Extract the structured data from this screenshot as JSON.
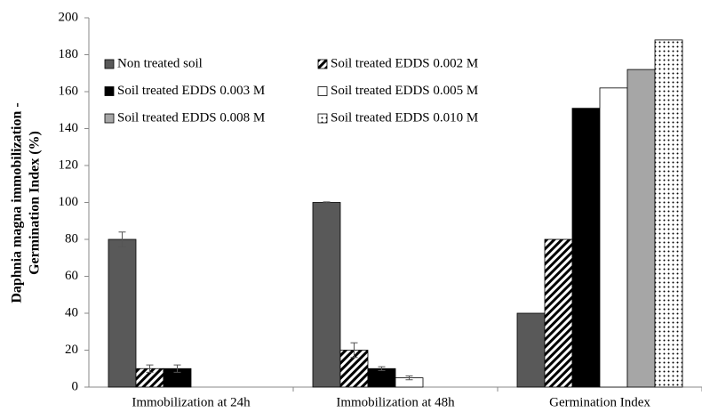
{
  "chart_data": {
    "type": "bar",
    "ylabel": [
      "Daphnia magna immobilization -",
      "Germination Index (%)"
    ],
    "categories": [
      "Immobilization at 24h",
      "Immobilization at 48h",
      "Germination Index"
    ],
    "ylim": [
      0,
      200
    ],
    "yticks": [
      0,
      20,
      40,
      60,
      80,
      100,
      120,
      140,
      160,
      180,
      200
    ],
    "legend": "upper left",
    "series": [
      {
        "name": "Non treated soil",
        "color": "#595959",
        "values": [
          80,
          100,
          40
        ],
        "errors": [
          4,
          0.3,
          null
        ]
      },
      {
        "name": "Soil treated EDDS 0.002 M",
        "color": "#4cc44c",
        "pattern": "stripes",
        "values": [
          10,
          20,
          80
        ],
        "errors": [
          2,
          4,
          null
        ]
      },
      {
        "name": "Soil treated EDDS 0.003 M",
        "color": "#000000",
        "values": [
          10,
          10,
          151
        ],
        "errors": [
          2,
          1,
          null
        ]
      },
      {
        "name": "Soil treated EDDS 0.005 M",
        "color": "#ffffff",
        "values": [
          0,
          5,
          162
        ],
        "errors": [
          null,
          1,
          null
        ]
      },
      {
        "name": "Soil treated EDDS 0.008 M",
        "color": "#a6a6a6",
        "values": [
          0,
          0,
          172
        ],
        "errors": [
          null,
          null,
          null
        ]
      },
      {
        "name": "Soil treated EDDS 0.010 M",
        "color": "#4cc44c",
        "pattern": "dots",
        "values": [
          0,
          0,
          188
        ],
        "errors": [
          null,
          null,
          null
        ]
      }
    ]
  }
}
